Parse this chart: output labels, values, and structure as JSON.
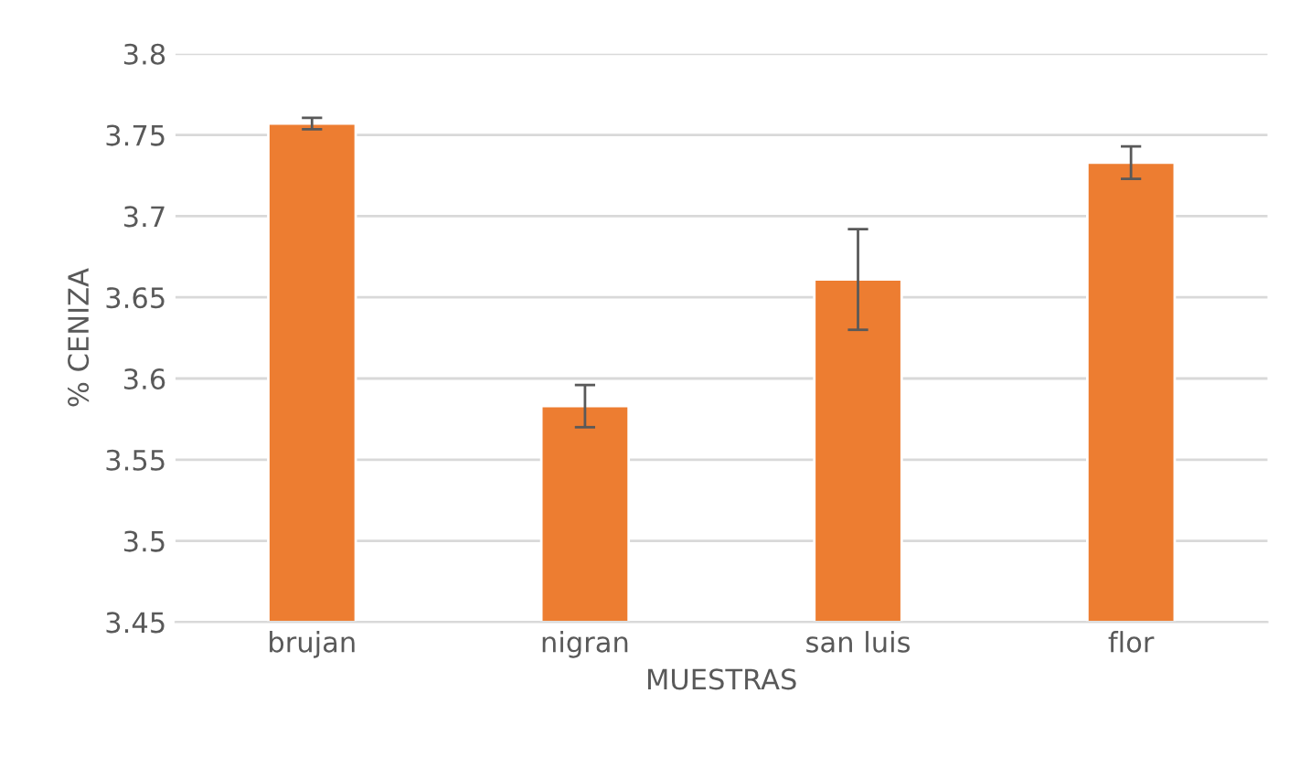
{
  "chart_data": {
    "type": "bar",
    "xlabel": "MUESTRAS",
    "ylabel": "% CENIZA",
    "categories": [
      "brujan",
      "nigran",
      "san luis",
      "flor"
    ],
    "values": [
      3.757,
      3.583,
      3.661,
      3.733
    ],
    "errors": [
      0.0035,
      0.013,
      0.031,
      0.01
    ],
    "color": "#ed7d31",
    "ylim": [
      3.45,
      3.8
    ],
    "yticks": [
      {
        "value": 3.45,
        "label": "3.45"
      },
      {
        "value": 3.5,
        "label": "3.5"
      },
      {
        "value": 3.55,
        "label": "3.55"
      },
      {
        "value": 3.6,
        "label": "3.6"
      },
      {
        "value": 3.65,
        "label": "3.65"
      },
      {
        "value": 3.7,
        "label": "3.7"
      },
      {
        "value": 3.75,
        "label": "3.75"
      },
      {
        "value": 3.8,
        "label": "3.8"
      }
    ],
    "grid": "y"
  }
}
